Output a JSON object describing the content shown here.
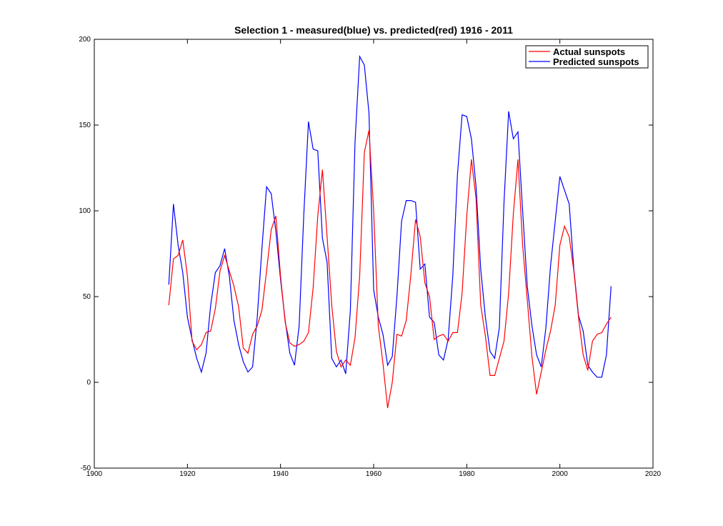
{
  "chart_data": {
    "type": "line",
    "title": "Selection 1 - measured(blue) vs. predicted(red) 1916 - 2011",
    "xlabel": "",
    "ylabel": "",
    "xlim": [
      1900,
      2020
    ],
    "ylim": [
      -50,
      200
    ],
    "xticks": [
      1900,
      1920,
      1940,
      1960,
      1980,
      2000,
      2020
    ],
    "yticks": [
      -50,
      0,
      50,
      100,
      150,
      200
    ],
    "grid": false,
    "legend_position": "top-right",
    "x": [
      1916,
      1917,
      1918,
      1919,
      1920,
      1921,
      1922,
      1923,
      1924,
      1925,
      1926,
      1927,
      1928,
      1929,
      1930,
      1931,
      1932,
      1933,
      1934,
      1935,
      1936,
      1937,
      1938,
      1939,
      1940,
      1941,
      1942,
      1943,
      1944,
      1945,
      1946,
      1947,
      1948,
      1949,
      1950,
      1951,
      1952,
      1953,
      1954,
      1955,
      1956,
      1957,
      1958,
      1959,
      1960,
      1961,
      1962,
      1963,
      1964,
      1965,
      1966,
      1967,
      1968,
      1969,
      1970,
      1971,
      1972,
      1973,
      1974,
      1975,
      1976,
      1977,
      1978,
      1979,
      1980,
      1981,
      1982,
      1983,
      1984,
      1985,
      1986,
      1987,
      1988,
      1989,
      1990,
      1991,
      1992,
      1993,
      1994,
      1995,
      1996,
      1997,
      1998,
      1999,
      2000,
      2001,
      2002,
      2003,
      2004,
      2005,
      2006,
      2007,
      2008,
      2009,
      2010,
      2011
    ],
    "series": [
      {
        "name": "Actual sunspots",
        "color": "#ff0000",
        "values": [
          45,
          72,
          74,
          83,
          62,
          24,
          19,
          22,
          29,
          30,
          43,
          65,
          74,
          65,
          56,
          44,
          20,
          17,
          28,
          33,
          42,
          65,
          89,
          97,
          62,
          35,
          23,
          21,
          22,
          24,
          29,
          55,
          97,
          124,
          85,
          45,
          18,
          9,
          13,
          10,
          26,
          62,
          134,
          147,
          100,
          33,
          11,
          -15,
          0,
          28,
          27,
          36,
          63,
          95,
          85,
          58,
          50,
          25,
          27,
          28,
          24,
          29,
          29,
          52,
          97,
          130,
          107,
          45,
          27,
          4,
          4,
          14,
          24,
          52,
          98,
          130,
          80,
          48,
          15,
          -7,
          6,
          19,
          30,
          45,
          80,
          91,
          85,
          65,
          38,
          16,
          7,
          24,
          28,
          29,
          34,
          38
        ]
      },
      {
        "name": "Predicted sunspots",
        "color": "#0000ff",
        "values": [
          57,
          104,
          80,
          64,
          38,
          25,
          14,
          6,
          17,
          45,
          64,
          68,
          78,
          62,
          36,
          22,
          12,
          6,
          9,
          38,
          78,
          114,
          110,
          88,
          60,
          36,
          17,
          10,
          33,
          98,
          152,
          136,
          135,
          84,
          70,
          14,
          9,
          13,
          5,
          42,
          140,
          190,
          185,
          157,
          54,
          38,
          28,
          10,
          15,
          50,
          94,
          106,
          106,
          105,
          66,
          69,
          38,
          35,
          16,
          13,
          25,
          62,
          121,
          156,
          155,
          142,
          114,
          66,
          38,
          18,
          14,
          32,
          105,
          158,
          142,
          146,
          100,
          56,
          33,
          16,
          9,
          32,
          68,
          94,
          120,
          112,
          104,
          66,
          39,
          30,
          10,
          6,
          3,
          3,
          16,
          56
        ]
      }
    ]
  }
}
